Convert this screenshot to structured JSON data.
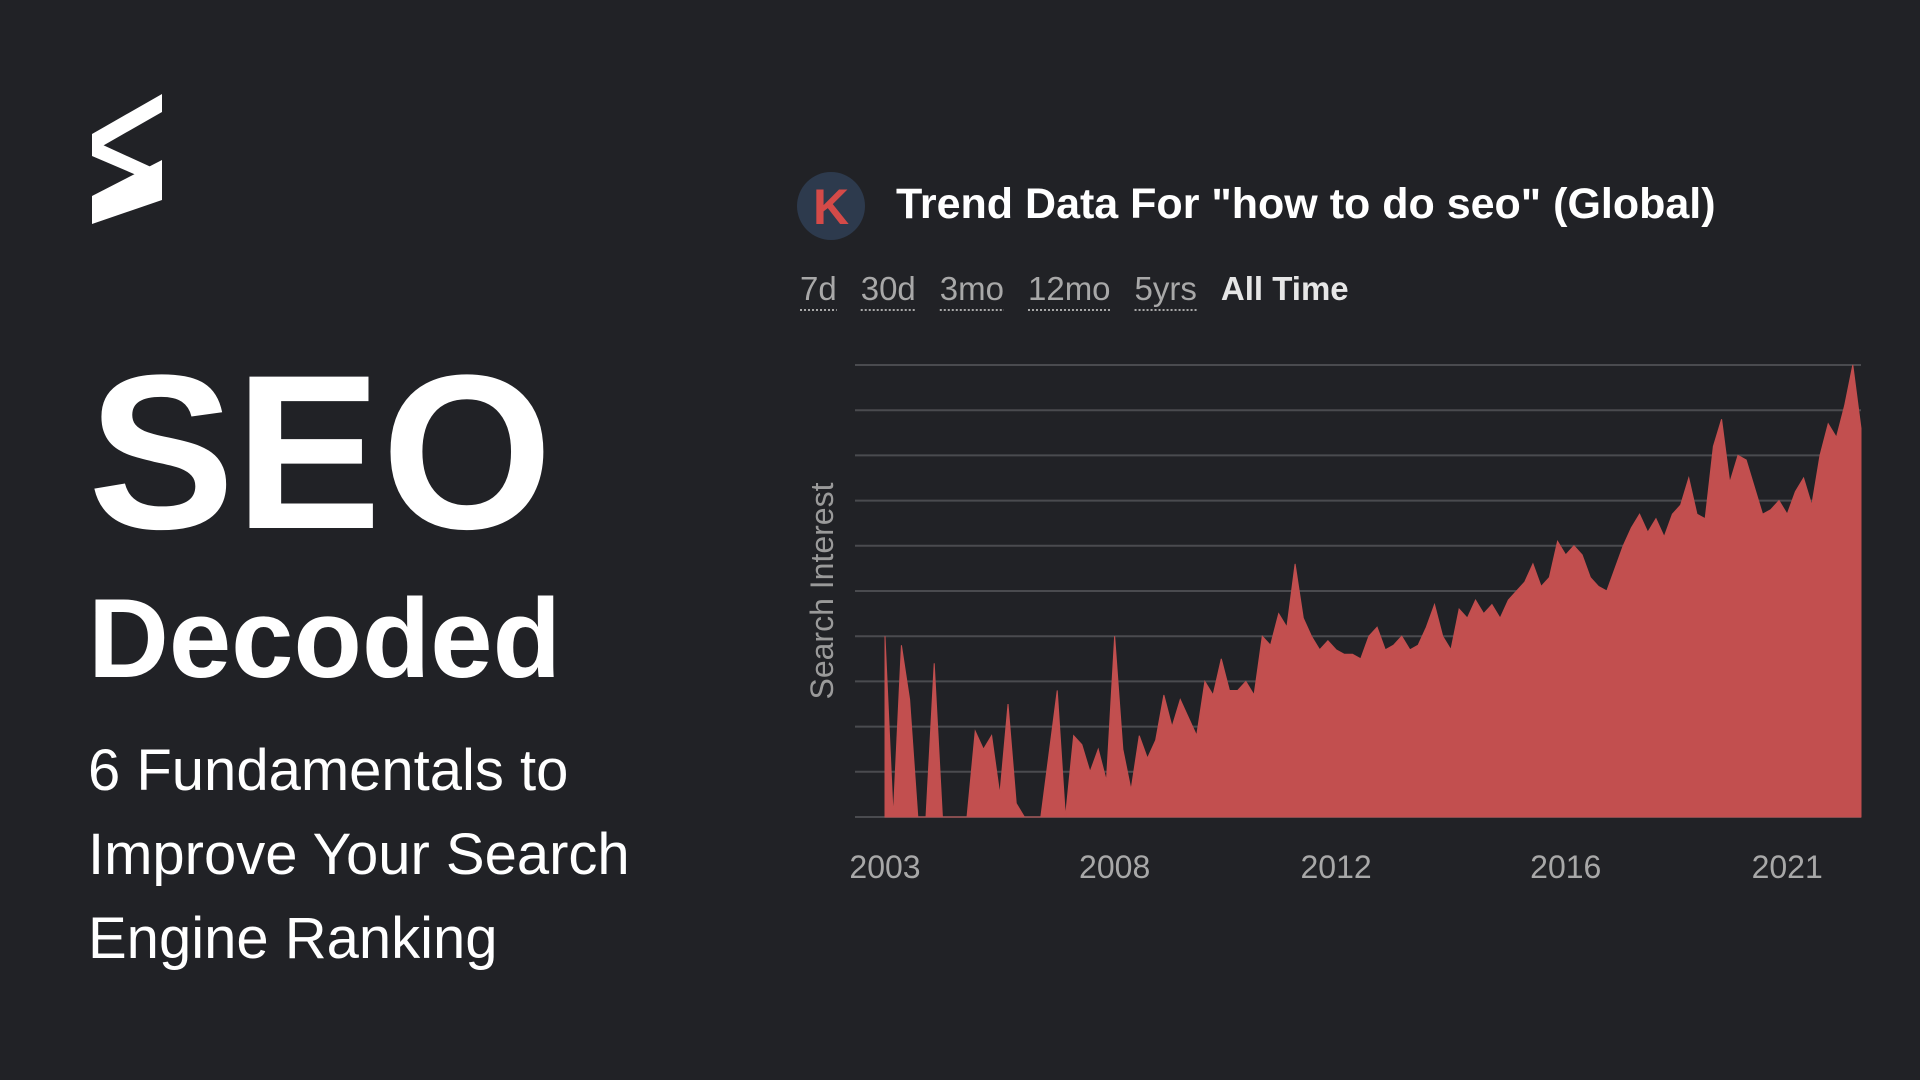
{
  "headline": {
    "title": "SEO",
    "subtitle": "Decoded",
    "lines": [
      "6 Fundamentals to",
      "Improve Your Search",
      "Engine Ranking"
    ]
  },
  "widget": {
    "badge": "K",
    "tabs": [
      "7d",
      "30d",
      "3mo",
      "12mo",
      "5yrs",
      "All Time"
    ],
    "active_tab": 5
  },
  "chart_data": {
    "type": "area",
    "title": "Trend Data For \"how to do seo\" (Global)",
    "y_label": "Search Interest",
    "categories": [
      "2003",
      null,
      null,
      null,
      null,
      null,
      null,
      null,
      null,
      null,
      null,
      null,
      null,
      null,
      null,
      null,
      null,
      null,
      null,
      null,
      null,
      null,
      null,
      null,
      null,
      null,
      null,
      null,
      "2008",
      null,
      null,
      null,
      null,
      null,
      null,
      null,
      null,
      null,
      null,
      null,
      null,
      null,
      null,
      null,
      null,
      null,
      null,
      null,
      null,
      null,
      null,
      null,
      null,
      null,
      null,
      "2012",
      null,
      null,
      null,
      null,
      null,
      null,
      null,
      null,
      null,
      null,
      null,
      null,
      null,
      null,
      null,
      null,
      null,
      null,
      null,
      null,
      null,
      null,
      null,
      null,
      null,
      null,
      null,
      "2016",
      null,
      null,
      null,
      null,
      null,
      null,
      null,
      null,
      null,
      null,
      null,
      null,
      null,
      null,
      null,
      null,
      null,
      null,
      null,
      null,
      null,
      null,
      null,
      null,
      null,
      null,
      "2021",
      null,
      null,
      null,
      null,
      null,
      null,
      null,
      null,
      null
    ],
    "series": [
      {
        "color": "#c24f4f",
        "values": [
          40,
          0,
          38,
          26,
          0,
          0,
          34,
          0,
          0,
          0,
          0,
          19,
          15,
          18,
          5,
          25,
          3,
          0,
          0,
          0,
          14,
          28,
          0,
          18,
          16,
          10,
          15,
          8,
          40,
          15,
          6,
          18,
          13,
          17,
          27,
          20,
          26,
          22,
          18,
          30,
          27,
          35,
          28,
          28,
          30,
          27,
          40,
          38,
          45,
          42,
          56,
          44,
          40,
          37,
          39,
          37,
          36,
          36,
          35,
          40,
          42,
          37,
          38,
          40,
          37,
          38,
          42,
          47,
          40,
          37,
          46,
          44,
          48,
          45,
          47,
          44,
          48,
          50,
          52,
          56,
          51,
          53,
          61,
          58,
          60,
          58,
          53,
          51,
          50,
          55,
          60,
          64,
          67,
          63,
          66,
          62,
          67,
          69,
          75,
          67,
          66,
          82,
          88,
          74,
          80,
          79,
          73,
          67,
          68,
          70,
          67,
          72,
          75,
          69,
          80,
          87,
          84,
          91,
          100,
          86
        ]
      }
    ],
    "ylim": [
      0,
      100
    ],
    "yticks": [
      0,
      10,
      20,
      30,
      40,
      50,
      60,
      70,
      80,
      90,
      100
    ],
    "grid": true
  }
}
